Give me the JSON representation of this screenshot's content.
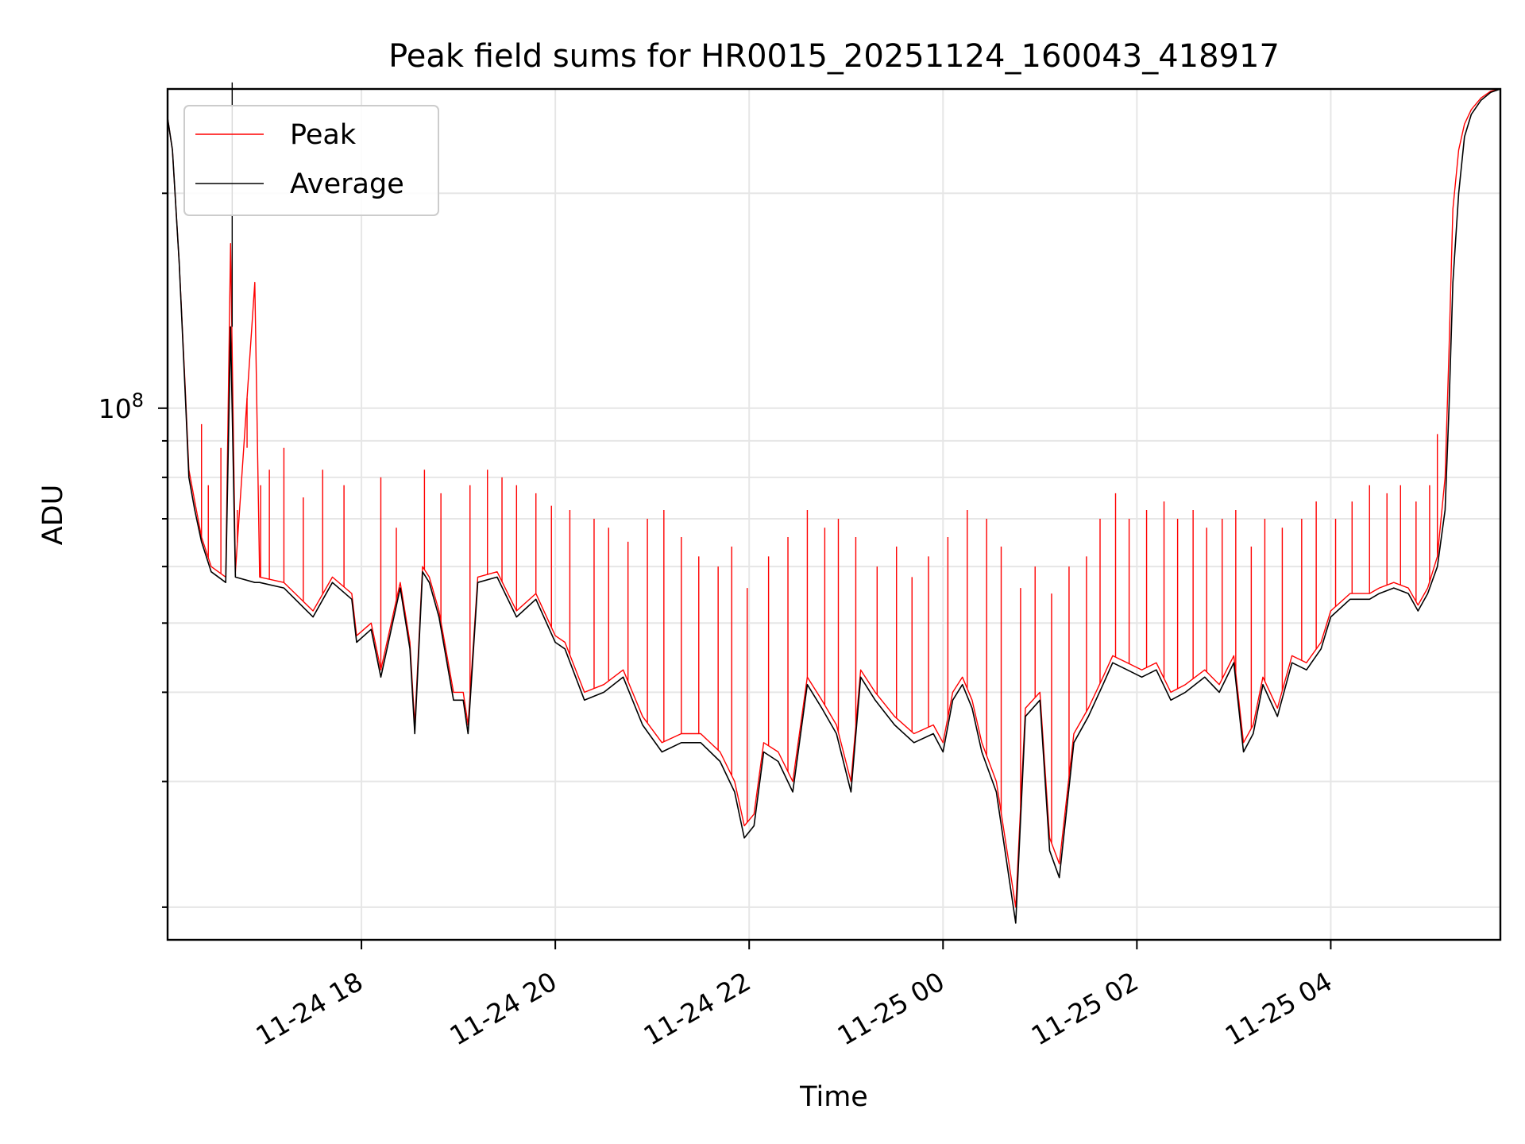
{
  "chart_data": {
    "type": "line",
    "title": "Peak field sums for HR0015_20251124_160043_418917",
    "xlabel": "Time",
    "ylabel": "ADU",
    "yscale": "log",
    "ylim": [
      18000000,
      280000000
    ],
    "xlim_hours": [
      16.0,
      29.75
    ],
    "grid": true,
    "legend_position": "upper-left",
    "x_ticks": [
      {
        "hour": 18,
        "label": "11-24 18"
      },
      {
        "hour": 20,
        "label": "11-24 20"
      },
      {
        "hour": 22,
        "label": "11-24 22"
      },
      {
        "hour": 24,
        "label": "11-25 00"
      },
      {
        "hour": 26,
        "label": "11-25 02"
      },
      {
        "hour": 28,
        "label": "11-25 04"
      }
    ],
    "y_major_ticks": [
      {
        "value": 100000000,
        "base": "10",
        "exponent": "8"
      }
    ],
    "y_minor_ticks": [
      20000000,
      30000000,
      40000000,
      50000000,
      60000000,
      70000000,
      80000000,
      90000000,
      200000000
    ],
    "series": [
      {
        "name": "Peak",
        "color": "#ff0000",
        "points": [
          [
            16.0,
            255000000
          ],
          [
            16.05,
            230000000
          ],
          [
            16.12,
            160000000
          ],
          [
            16.18,
            108000000
          ],
          [
            16.22,
            82000000
          ],
          [
            16.28,
            74000000
          ],
          [
            16.35,
            66000000
          ],
          [
            16.45,
            60000000
          ],
          [
            16.6,
            58000000
          ],
          [
            16.65,
            170000000
          ],
          [
            16.7,
            59000000
          ],
          [
            16.9,
            150000000
          ],
          [
            16.95,
            58000000
          ],
          [
            17.2,
            57000000
          ],
          [
            17.5,
            52000000
          ],
          [
            17.7,
            58000000
          ],
          [
            17.9,
            55000000
          ],
          [
            17.95,
            48000000
          ],
          [
            18.1,
            50000000
          ],
          [
            18.2,
            43000000
          ],
          [
            18.4,
            57000000
          ],
          [
            18.5,
            47000000
          ],
          [
            18.55,
            36000000
          ],
          [
            18.63,
            60000000
          ],
          [
            18.7,
            58000000
          ],
          [
            18.8,
            52000000
          ],
          [
            18.95,
            40000000
          ],
          [
            19.05,
            40000000
          ],
          [
            19.1,
            36000000
          ],
          [
            19.2,
            58000000
          ],
          [
            19.4,
            59000000
          ],
          [
            19.6,
            52000000
          ],
          [
            19.8,
            55000000
          ],
          [
            20.0,
            48000000
          ],
          [
            20.1,
            47000000
          ],
          [
            20.3,
            40000000
          ],
          [
            20.5,
            41000000
          ],
          [
            20.7,
            43000000
          ],
          [
            20.9,
            37000000
          ],
          [
            21.1,
            34000000
          ],
          [
            21.3,
            35000000
          ],
          [
            21.5,
            35000000
          ],
          [
            21.7,
            33000000
          ],
          [
            21.85,
            30000000
          ],
          [
            21.95,
            26000000
          ],
          [
            22.05,
            27000000
          ],
          [
            22.15,
            34000000
          ],
          [
            22.3,
            33000000
          ],
          [
            22.45,
            30000000
          ],
          [
            22.6,
            42000000
          ],
          [
            22.75,
            39000000
          ],
          [
            22.9,
            36000000
          ],
          [
            23.05,
            30000000
          ],
          [
            23.15,
            43000000
          ],
          [
            23.3,
            40000000
          ],
          [
            23.5,
            37000000
          ],
          [
            23.7,
            35000000
          ],
          [
            23.9,
            36000000
          ],
          [
            24.0,
            34000000
          ],
          [
            24.1,
            40000000
          ],
          [
            24.2,
            42000000
          ],
          [
            24.3,
            39000000
          ],
          [
            24.4,
            34000000
          ],
          [
            24.55,
            30000000
          ],
          [
            24.75,
            20000000
          ],
          [
            24.85,
            38000000
          ],
          [
            25.0,
            40000000
          ],
          [
            25.1,
            25000000
          ],
          [
            25.2,
            23000000
          ],
          [
            25.35,
            35000000
          ],
          [
            25.5,
            38000000
          ],
          [
            25.65,
            42000000
          ],
          [
            25.75,
            45000000
          ],
          [
            25.9,
            44000000
          ],
          [
            26.05,
            43000000
          ],
          [
            26.2,
            44000000
          ],
          [
            26.35,
            40000000
          ],
          [
            26.5,
            41000000
          ],
          [
            26.7,
            43000000
          ],
          [
            26.85,
            41000000
          ],
          [
            27.0,
            45000000
          ],
          [
            27.1,
            34000000
          ],
          [
            27.2,
            36000000
          ],
          [
            27.3,
            42000000
          ],
          [
            27.45,
            38000000
          ],
          [
            27.6,
            45000000
          ],
          [
            27.75,
            44000000
          ],
          [
            27.9,
            47000000
          ],
          [
            28.0,
            52000000
          ],
          [
            28.2,
            55000000
          ],
          [
            28.4,
            55000000
          ],
          [
            28.5,
            56000000
          ],
          [
            28.65,
            57000000
          ],
          [
            28.8,
            56000000
          ],
          [
            28.9,
            53000000
          ],
          [
            29.0,
            56000000
          ],
          [
            29.1,
            62000000
          ],
          [
            29.18,
            80000000
          ],
          [
            29.22,
            120000000
          ],
          [
            29.26,
            190000000
          ],
          [
            29.32,
            230000000
          ],
          [
            29.38,
            250000000
          ],
          [
            29.45,
            262000000
          ],
          [
            29.55,
            272000000
          ],
          [
            29.65,
            278000000
          ],
          [
            29.75,
            280000000
          ]
        ]
      },
      {
        "name": "Average",
        "color": "#000000",
        "points": [
          [
            16.0,
            255000000
          ],
          [
            16.05,
            230000000
          ],
          [
            16.12,
            160000000
          ],
          [
            16.18,
            106000000
          ],
          [
            16.22,
            80000000
          ],
          [
            16.28,
            72000000
          ],
          [
            16.35,
            65000000
          ],
          [
            16.45,
            59000000
          ],
          [
            16.6,
            57000000
          ],
          [
            16.65,
            130000000
          ],
          [
            16.7,
            58000000
          ],
          [
            16.9,
            57000000
          ],
          [
            16.95,
            57000000
          ],
          [
            17.2,
            56000000
          ],
          [
            17.5,
            51000000
          ],
          [
            17.7,
            57000000
          ],
          [
            17.9,
            54000000
          ],
          [
            17.95,
            47000000
          ],
          [
            18.1,
            49000000
          ],
          [
            18.2,
            42000000
          ],
          [
            18.4,
            56000000
          ],
          [
            18.5,
            46000000
          ],
          [
            18.55,
            35000000
          ],
          [
            18.63,
            59000000
          ],
          [
            18.7,
            57000000
          ],
          [
            18.8,
            51000000
          ],
          [
            18.95,
            39000000
          ],
          [
            19.05,
            39000000
          ],
          [
            19.1,
            35000000
          ],
          [
            19.2,
            57000000
          ],
          [
            19.4,
            58000000
          ],
          [
            19.6,
            51000000
          ],
          [
            19.8,
            54000000
          ],
          [
            20.0,
            47000000
          ],
          [
            20.1,
            46000000
          ],
          [
            20.3,
            39000000
          ],
          [
            20.5,
            40000000
          ],
          [
            20.7,
            42000000
          ],
          [
            20.9,
            36000000
          ],
          [
            21.1,
            33000000
          ],
          [
            21.3,
            34000000
          ],
          [
            21.5,
            34000000
          ],
          [
            21.7,
            32000000
          ],
          [
            21.85,
            29000000
          ],
          [
            21.95,
            25000000
          ],
          [
            22.05,
            26000000
          ],
          [
            22.15,
            33000000
          ],
          [
            22.3,
            32000000
          ],
          [
            22.45,
            29000000
          ],
          [
            22.6,
            41000000
          ],
          [
            22.75,
            38000000
          ],
          [
            22.9,
            35000000
          ],
          [
            23.05,
            29000000
          ],
          [
            23.15,
            42000000
          ],
          [
            23.3,
            39000000
          ],
          [
            23.5,
            36000000
          ],
          [
            23.7,
            34000000
          ],
          [
            23.9,
            35000000
          ],
          [
            24.0,
            33000000
          ],
          [
            24.1,
            39000000
          ],
          [
            24.2,
            41000000
          ],
          [
            24.3,
            38000000
          ],
          [
            24.4,
            33000000
          ],
          [
            24.55,
            29000000
          ],
          [
            24.75,
            19000000
          ],
          [
            24.85,
            37000000
          ],
          [
            25.0,
            39000000
          ],
          [
            25.1,
            24000000
          ],
          [
            25.2,
            22000000
          ],
          [
            25.35,
            34000000
          ],
          [
            25.5,
            37000000
          ],
          [
            25.65,
            41000000
          ],
          [
            25.75,
            44000000
          ],
          [
            25.9,
            43000000
          ],
          [
            26.05,
            42000000
          ],
          [
            26.2,
            43000000
          ],
          [
            26.35,
            39000000
          ],
          [
            26.5,
            40000000
          ],
          [
            26.7,
            42000000
          ],
          [
            26.85,
            40000000
          ],
          [
            27.0,
            44000000
          ],
          [
            27.1,
            33000000
          ],
          [
            27.2,
            35000000
          ],
          [
            27.3,
            41000000
          ],
          [
            27.45,
            37000000
          ],
          [
            27.6,
            44000000
          ],
          [
            27.75,
            43000000
          ],
          [
            27.9,
            46000000
          ],
          [
            28.0,
            51000000
          ],
          [
            28.2,
            54000000
          ],
          [
            28.4,
            54000000
          ],
          [
            28.5,
            55000000
          ],
          [
            28.65,
            56000000
          ],
          [
            28.8,
            55000000
          ],
          [
            28.9,
            52000000
          ],
          [
            29.0,
            55000000
          ],
          [
            29.1,
            60000000
          ],
          [
            29.18,
            72000000
          ],
          [
            29.22,
            100000000
          ],
          [
            29.26,
            150000000
          ],
          [
            29.32,
            200000000
          ],
          [
            29.38,
            240000000
          ],
          [
            29.45,
            258000000
          ],
          [
            29.55,
            270000000
          ],
          [
            29.65,
            277000000
          ],
          [
            29.75,
            280000000
          ]
        ]
      }
    ],
    "peak_spikes": [
      [
        16.35,
        95000000
      ],
      [
        16.42,
        78000000
      ],
      [
        16.55,
        88000000
      ],
      [
        16.72,
        72000000
      ],
      [
        16.82,
        88000000
      ],
      [
        16.96,
        78000000
      ],
      [
        17.05,
        82000000
      ],
      [
        17.2,
        88000000
      ],
      [
        17.4,
        75000000
      ],
      [
        17.6,
        82000000
      ],
      [
        17.82,
        78000000
      ],
      [
        18.2,
        80000000
      ],
      [
        18.36,
        68000000
      ],
      [
        18.65,
        82000000
      ],
      [
        18.82,
        76000000
      ],
      [
        19.12,
        78000000
      ],
      [
        19.3,
        82000000
      ],
      [
        19.45,
        80000000
      ],
      [
        19.6,
        78000000
      ],
      [
        19.8,
        76000000
      ],
      [
        19.96,
        73000000
      ],
      [
        20.15,
        72000000
      ],
      [
        20.4,
        70000000
      ],
      [
        20.55,
        68000000
      ],
      [
        20.75,
        65000000
      ],
      [
        20.95,
        70000000
      ],
      [
        21.12,
        72000000
      ],
      [
        21.3,
        66000000
      ],
      [
        21.48,
        62000000
      ],
      [
        21.68,
        60000000
      ],
      [
        21.82,
        64000000
      ],
      [
        21.98,
        56000000
      ],
      [
        22.2,
        62000000
      ],
      [
        22.4,
        66000000
      ],
      [
        22.6,
        72000000
      ],
      [
        22.78,
        68000000
      ],
      [
        22.92,
        70000000
      ],
      [
        23.1,
        66000000
      ],
      [
        23.32,
        60000000
      ],
      [
        23.52,
        64000000
      ],
      [
        23.68,
        58000000
      ],
      [
        23.85,
        62000000
      ],
      [
        24.05,
        66000000
      ],
      [
        24.25,
        72000000
      ],
      [
        24.45,
        70000000
      ],
      [
        24.6,
        64000000
      ],
      [
        24.8,
        56000000
      ],
      [
        24.95,
        60000000
      ],
      [
        25.12,
        55000000
      ],
      [
        25.3,
        60000000
      ],
      [
        25.48,
        62000000
      ],
      [
        25.62,
        70000000
      ],
      [
        25.78,
        76000000
      ],
      [
        25.92,
        70000000
      ],
      [
        26.1,
        72000000
      ],
      [
        26.28,
        74000000
      ],
      [
        26.42,
        70000000
      ],
      [
        26.58,
        72000000
      ],
      [
        26.72,
        68000000
      ],
      [
        26.88,
        70000000
      ],
      [
        27.02,
        72000000
      ],
      [
        27.18,
        64000000
      ],
      [
        27.32,
        70000000
      ],
      [
        27.5,
        68000000
      ],
      [
        27.7,
        70000000
      ],
      [
        27.85,
        74000000
      ],
      [
        28.05,
        70000000
      ],
      [
        28.22,
        74000000
      ],
      [
        28.4,
        78000000
      ],
      [
        28.58,
        76000000
      ],
      [
        28.72,
        78000000
      ],
      [
        28.88,
        74000000
      ],
      [
        29.02,
        78000000
      ],
      [
        29.1,
        92000000
      ]
    ],
    "peak_spike_hours_black": [
      16.65
    ]
  }
}
